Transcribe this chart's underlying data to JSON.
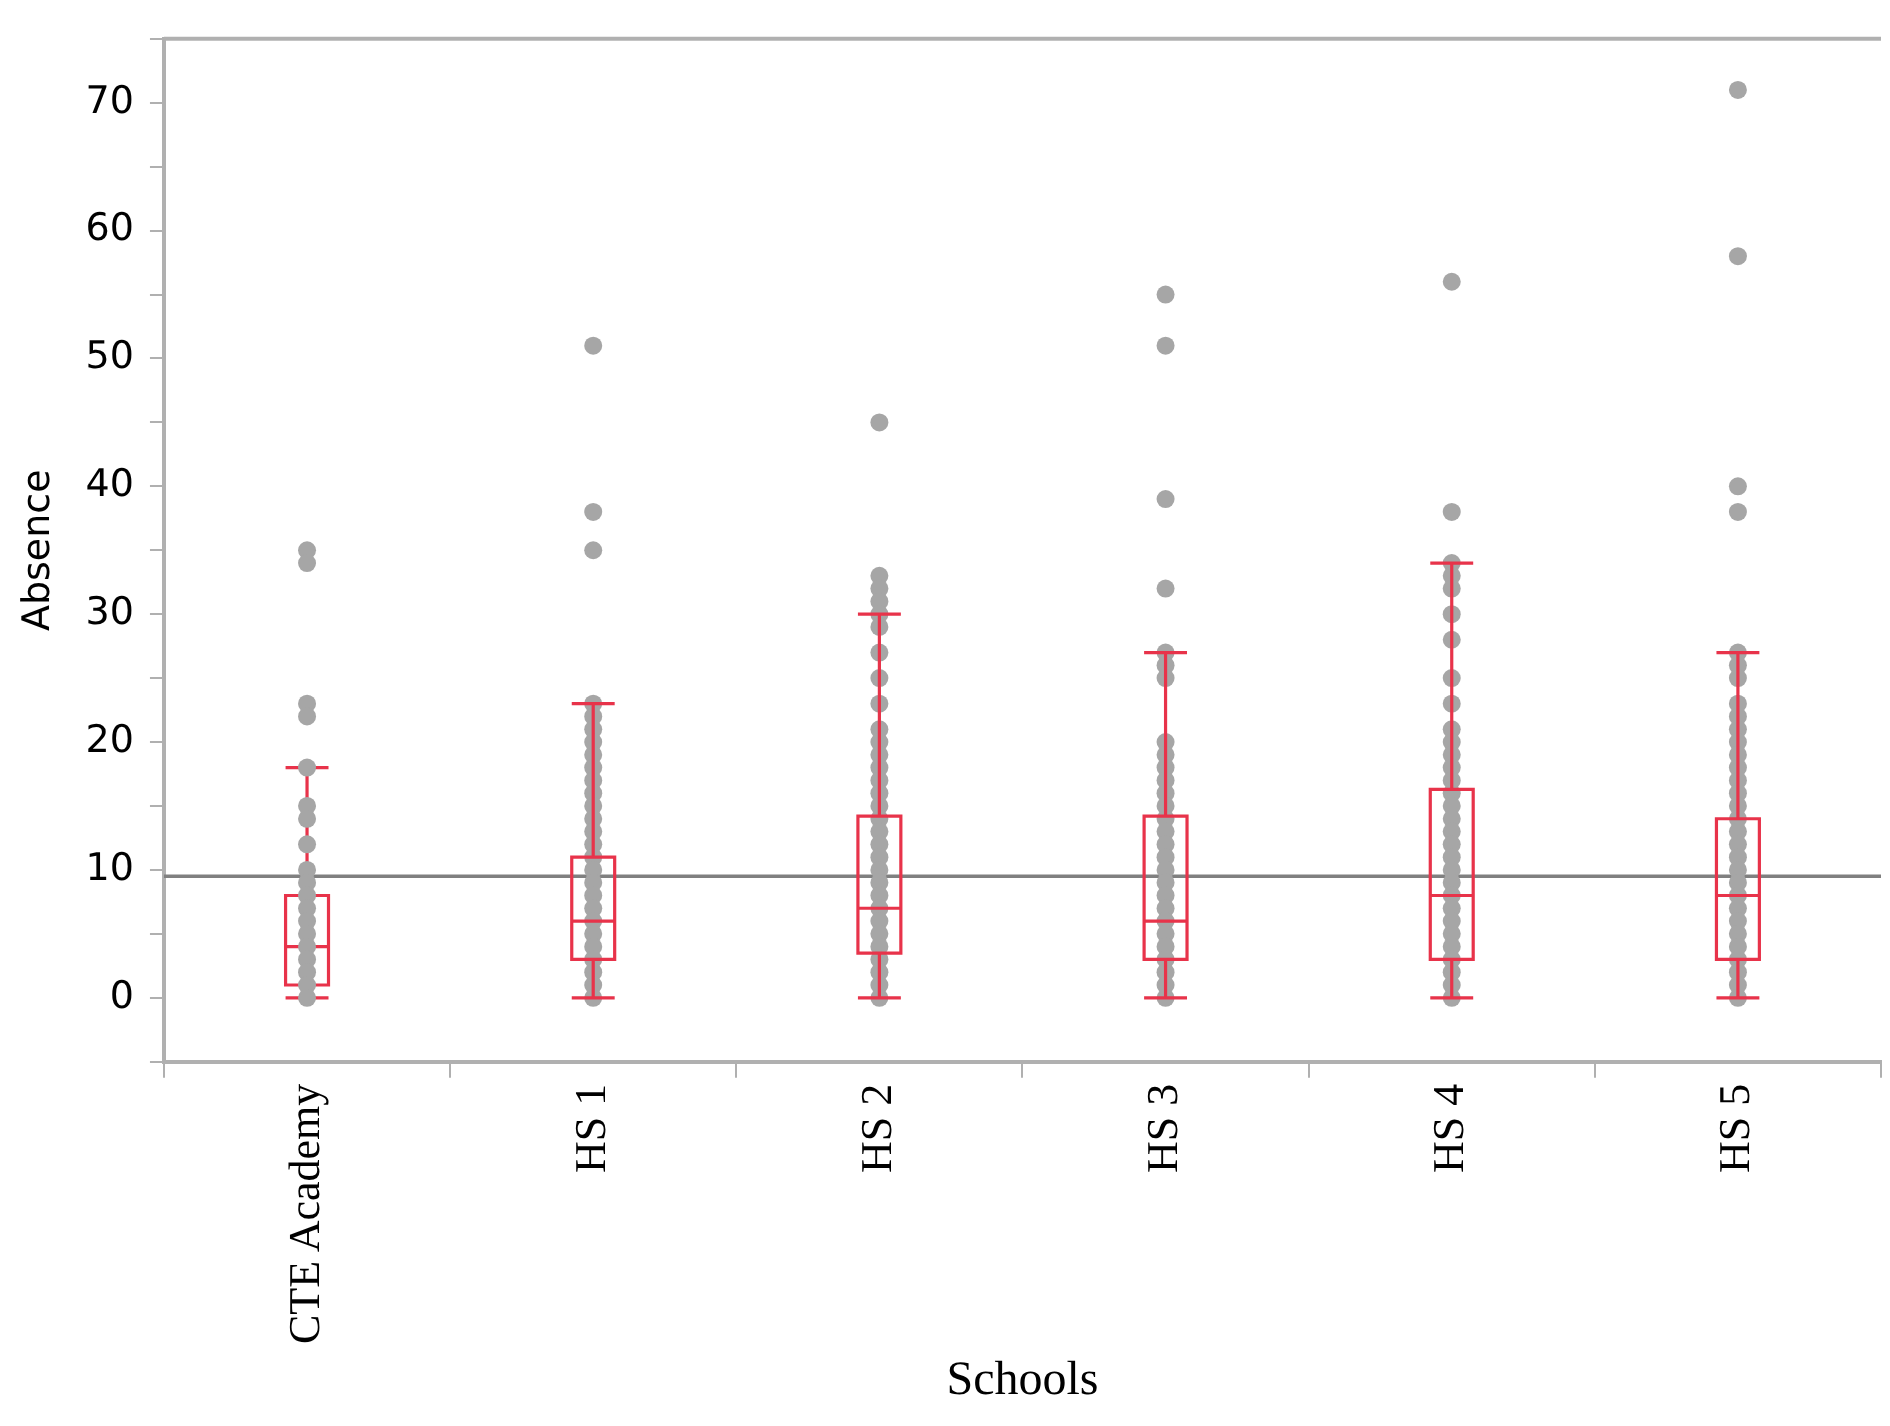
{
  "chart_data": {
    "type": "box",
    "xlabel": "Schools",
    "ylabel": "Absence",
    "categories": [
      "CTE Academy",
      "HS 1",
      "HS 2",
      "HS 3",
      "HS 4",
      "HS 5"
    ],
    "ylim": [
      -5,
      75
    ],
    "yticks": [
      {
        "value": -5,
        "label": null
      },
      0,
      {
        "value": 5,
        "label": null
      },
      10,
      {
        "value": 15,
        "label": null
      },
      20,
      {
        "value": 25,
        "label": null
      },
      30,
      {
        "value": 35,
        "label": null
      },
      40,
      {
        "value": 45,
        "label": null
      },
      50,
      {
        "value": 55,
        "label": null
      },
      60,
      {
        "value": 65,
        "label": null
      },
      70,
      {
        "value": 75,
        "label": null
      }
    ],
    "grid": false,
    "legend": false,
    "ref_lines": [
      {
        "axis": "y",
        "value": 9.5,
        "color": "#808080"
      }
    ],
    "series": [
      {
        "type": "scatter",
        "marker": "circle",
        "color": "#a6a6a6",
        "x": [
          "CTE Academy",
          "CTE Academy",
          "CTE Academy",
          "CTE Academy",
          "CTE Academy",
          "CTE Academy",
          "CTE Academy",
          "CTE Academy",
          "CTE Academy",
          "CTE Academy",
          "CTE Academy",
          "CTE Academy",
          "CTE Academy",
          "CTE Academy",
          "CTE Academy",
          "CTE Academy",
          "CTE Academy",
          "CTE Academy",
          "CTE Academy"
        ],
        "values": [
          35,
          34,
          23,
          22,
          18,
          15,
          14,
          12,
          10,
          9,
          8,
          7,
          6,
          5,
          4,
          3,
          2,
          1,
          0
        ]
      },
      {
        "type": "scatter",
        "marker": "circle",
        "color": "#a6a6a6",
        "x": [
          "HS 1",
          "HS 1",
          "HS 1",
          "HS 1",
          "HS 1",
          "HS 1",
          "HS 1",
          "HS 1",
          "HS 1",
          "HS 1",
          "HS 1",
          "HS 1",
          "HS 1",
          "HS 1",
          "HS 1",
          "HS 1",
          "HS 1",
          "HS 1",
          "HS 1",
          "HS 1",
          "HS 1",
          "HS 1",
          "HS 1",
          "HS 1",
          "HS 1",
          "HS 1",
          "HS 1"
        ],
        "values": [
          51,
          38,
          35,
          23,
          22,
          21,
          20,
          19,
          18,
          17,
          16,
          15,
          14,
          13,
          12,
          11,
          10,
          9,
          8,
          7,
          6,
          5,
          4,
          3,
          2,
          1,
          0
        ]
      },
      {
        "type": "scatter",
        "marker": "circle",
        "color": "#a6a6a6",
        "x": [
          "HS 2",
          "HS 2",
          "HS 2",
          "HS 2",
          "HS 2",
          "HS 2",
          "HS 2",
          "HS 2",
          "HS 2",
          "HS 2",
          "HS 2",
          "HS 2",
          "HS 2",
          "HS 2",
          "HS 2",
          "HS 2",
          "HS 2",
          "HS 2",
          "HS 2",
          "HS 2",
          "HS 2",
          "HS 2",
          "HS 2",
          "HS 2",
          "HS 2",
          "HS 2",
          "HS 2",
          "HS 2",
          "HS 2",
          "HS 2",
          "HS 2"
        ],
        "values": [
          45,
          33,
          32,
          31,
          30,
          29,
          27,
          25,
          23,
          21,
          20,
          19,
          18,
          17,
          16,
          15,
          14,
          13,
          12,
          11,
          10,
          9,
          8,
          7,
          6,
          5,
          4,
          3,
          2,
          1,
          0
        ]
      },
      {
        "type": "scatter",
        "marker": "circle",
        "color": "#a6a6a6",
        "x": [
          "HS 3",
          "HS 3",
          "HS 3",
          "HS 3",
          "HS 3",
          "HS 3",
          "HS 3",
          "HS 3",
          "HS 3",
          "HS 3",
          "HS 3",
          "HS 3",
          "HS 3",
          "HS 3",
          "HS 3",
          "HS 3",
          "HS 3",
          "HS 3",
          "HS 3",
          "HS 3",
          "HS 3",
          "HS 3",
          "HS 3",
          "HS 3",
          "HS 3",
          "HS 3",
          "HS 3",
          "HS 3"
        ],
        "values": [
          55,
          51,
          39,
          32,
          27,
          26,
          25,
          20,
          19,
          18,
          17,
          16,
          15,
          14,
          13,
          12,
          11,
          10,
          9,
          8,
          7,
          6,
          5,
          4,
          3,
          2,
          1,
          0
        ]
      },
      {
        "type": "scatter",
        "marker": "circle",
        "color": "#a6a6a6",
        "x": [
          "HS 4",
          "HS 4",
          "HS 4",
          "HS 4",
          "HS 4",
          "HS 4",
          "HS 4",
          "HS 4",
          "HS 4",
          "HS 4",
          "HS 4",
          "HS 4",
          "HS 4",
          "HS 4",
          "HS 4",
          "HS 4",
          "HS 4",
          "HS 4",
          "HS 4",
          "HS 4",
          "HS 4",
          "HS 4",
          "HS 4",
          "HS 4",
          "HS 4",
          "HS 4",
          "HS 4",
          "HS 4",
          "HS 4",
          "HS 4",
          "HS 4"
        ],
        "values": [
          56,
          38,
          34,
          33,
          32,
          30,
          28,
          25,
          23,
          21,
          20,
          19,
          18,
          17,
          16,
          15,
          14,
          13,
          12,
          11,
          10,
          9,
          8,
          7,
          6,
          5,
          4,
          3,
          2,
          1,
          0
        ]
      },
      {
        "type": "scatter",
        "marker": "circle",
        "color": "#a6a6a6",
        "x": [
          "HS 5",
          "HS 5",
          "HS 5",
          "HS 5",
          "HS 5",
          "HS 5",
          "HS 5",
          "HS 5",
          "HS 5",
          "HS 5",
          "HS 5",
          "HS 5",
          "HS 5",
          "HS 5",
          "HS 5",
          "HS 5",
          "HS 5",
          "HS 5",
          "HS 5",
          "HS 5",
          "HS 5",
          "HS 5",
          "HS 5",
          "HS 5",
          "HS 5",
          "HS 5",
          "HS 5",
          "HS 5",
          "HS 5",
          "HS 5",
          "HS 5"
        ],
        "values": [
          71,
          58,
          40,
          38,
          27,
          26,
          25,
          23,
          22,
          21,
          20,
          19,
          18,
          17,
          16,
          15,
          14,
          13,
          12,
          11,
          10,
          9,
          8,
          7,
          6,
          5,
          4,
          3,
          2,
          1,
          0
        ]
      },
      {
        "type": "box",
        "color": "#e8334a",
        "boxes": [
          {
            "low": 0,
            "q1": 1,
            "median": 4,
            "q3": 8,
            "high": 18
          },
          {
            "low": 0,
            "q1": 3,
            "median": 6,
            "q3": 11,
            "high": 23
          },
          {
            "low": 0,
            "q1": 3.5,
            "median": 7,
            "q3": 14.2,
            "high": 30
          },
          {
            "low": 0,
            "q1": 3,
            "median": 6,
            "q3": 14.2,
            "high": 27
          },
          {
            "low": 0,
            "q1": 3,
            "median": 8,
            "q3": 16.3,
            "high": 34
          },
          {
            "low": 0,
            "q1": 3,
            "median": 8,
            "q3": 14,
            "high": 27
          }
        ]
      }
    ]
  }
}
